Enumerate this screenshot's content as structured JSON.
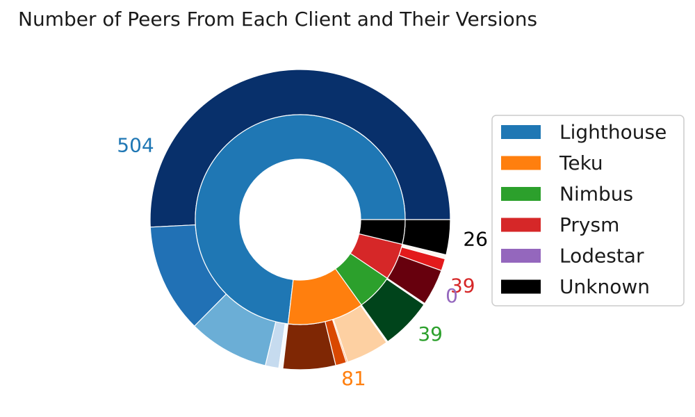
{
  "chart_data": {
    "type": "pie",
    "subtype": "nested-donut",
    "title": "Number of Peers From Each Client and Their Versions",
    "legend_position": "right",
    "legend": [
      {
        "label": "Lighthouse",
        "color": "#1f77b4"
      },
      {
        "label": "Teku",
        "color": "#ff7f0e"
      },
      {
        "label": "Nimbus",
        "color": "#2ca02c"
      },
      {
        "label": "Prysm",
        "color": "#d62728"
      },
      {
        "label": "Lodestar",
        "color": "#9467bd"
      },
      {
        "label": "Unknown",
        "color": "#000000"
      }
    ],
    "inner_ring": [
      {
        "name": "Lighthouse",
        "value": 504,
        "color": "#1f77b4",
        "label": "504"
      },
      {
        "name": "Teku",
        "value": 81,
        "color": "#ff7f0e",
        "label": "81"
      },
      {
        "name": "Nimbus",
        "value": 39,
        "color": "#2ca02c",
        "label": "39"
      },
      {
        "name": "Prysm",
        "value": 39,
        "color": "#d62728",
        "label": "39"
      },
      {
        "name": "Lodestar",
        "value": 0,
        "color": "#9467bd",
        "label": "0"
      },
      {
        "name": "Unknown",
        "value": 26,
        "color": "#000000",
        "label": "26"
      }
    ],
    "outer_ring": [
      {
        "client": "Lighthouse",
        "value": 350,
        "color": "#08306b"
      },
      {
        "client": "Lighthouse",
        "value": 81,
        "color": "#2171b5"
      },
      {
        "client": "Lighthouse",
        "value": 60,
        "color": "#6baed6"
      },
      {
        "client": "Lighthouse",
        "value": 10,
        "color": "#c6dbef"
      },
      {
        "client": "Lighthouse",
        "value": 3,
        "color": "#f7fbff"
      },
      {
        "client": "Teku",
        "value": 39,
        "color": "#7f2704"
      },
      {
        "client": "Teku",
        "value": 8,
        "color": "#d94801"
      },
      {
        "client": "Teku",
        "value": 1,
        "color": "#fd8d3c"
      },
      {
        "client": "Teku",
        "value": 32,
        "color": "#fdd0a2"
      },
      {
        "client": "Teku",
        "value": 1,
        "color": "#fff5eb"
      },
      {
        "client": "Nimbus",
        "value": 38,
        "color": "#00441b"
      },
      {
        "client": "Nimbus",
        "value": 1,
        "color": "#f7fcf5"
      },
      {
        "client": "Prysm",
        "value": 27,
        "color": "#67000d"
      },
      {
        "client": "Prysm",
        "value": 9,
        "color": "#e31a1c"
      },
      {
        "client": "Prysm",
        "value": 3,
        "color": "#fff5f0"
      },
      {
        "client": "Unknown",
        "value": 26,
        "color": "#000000"
      }
    ]
  }
}
